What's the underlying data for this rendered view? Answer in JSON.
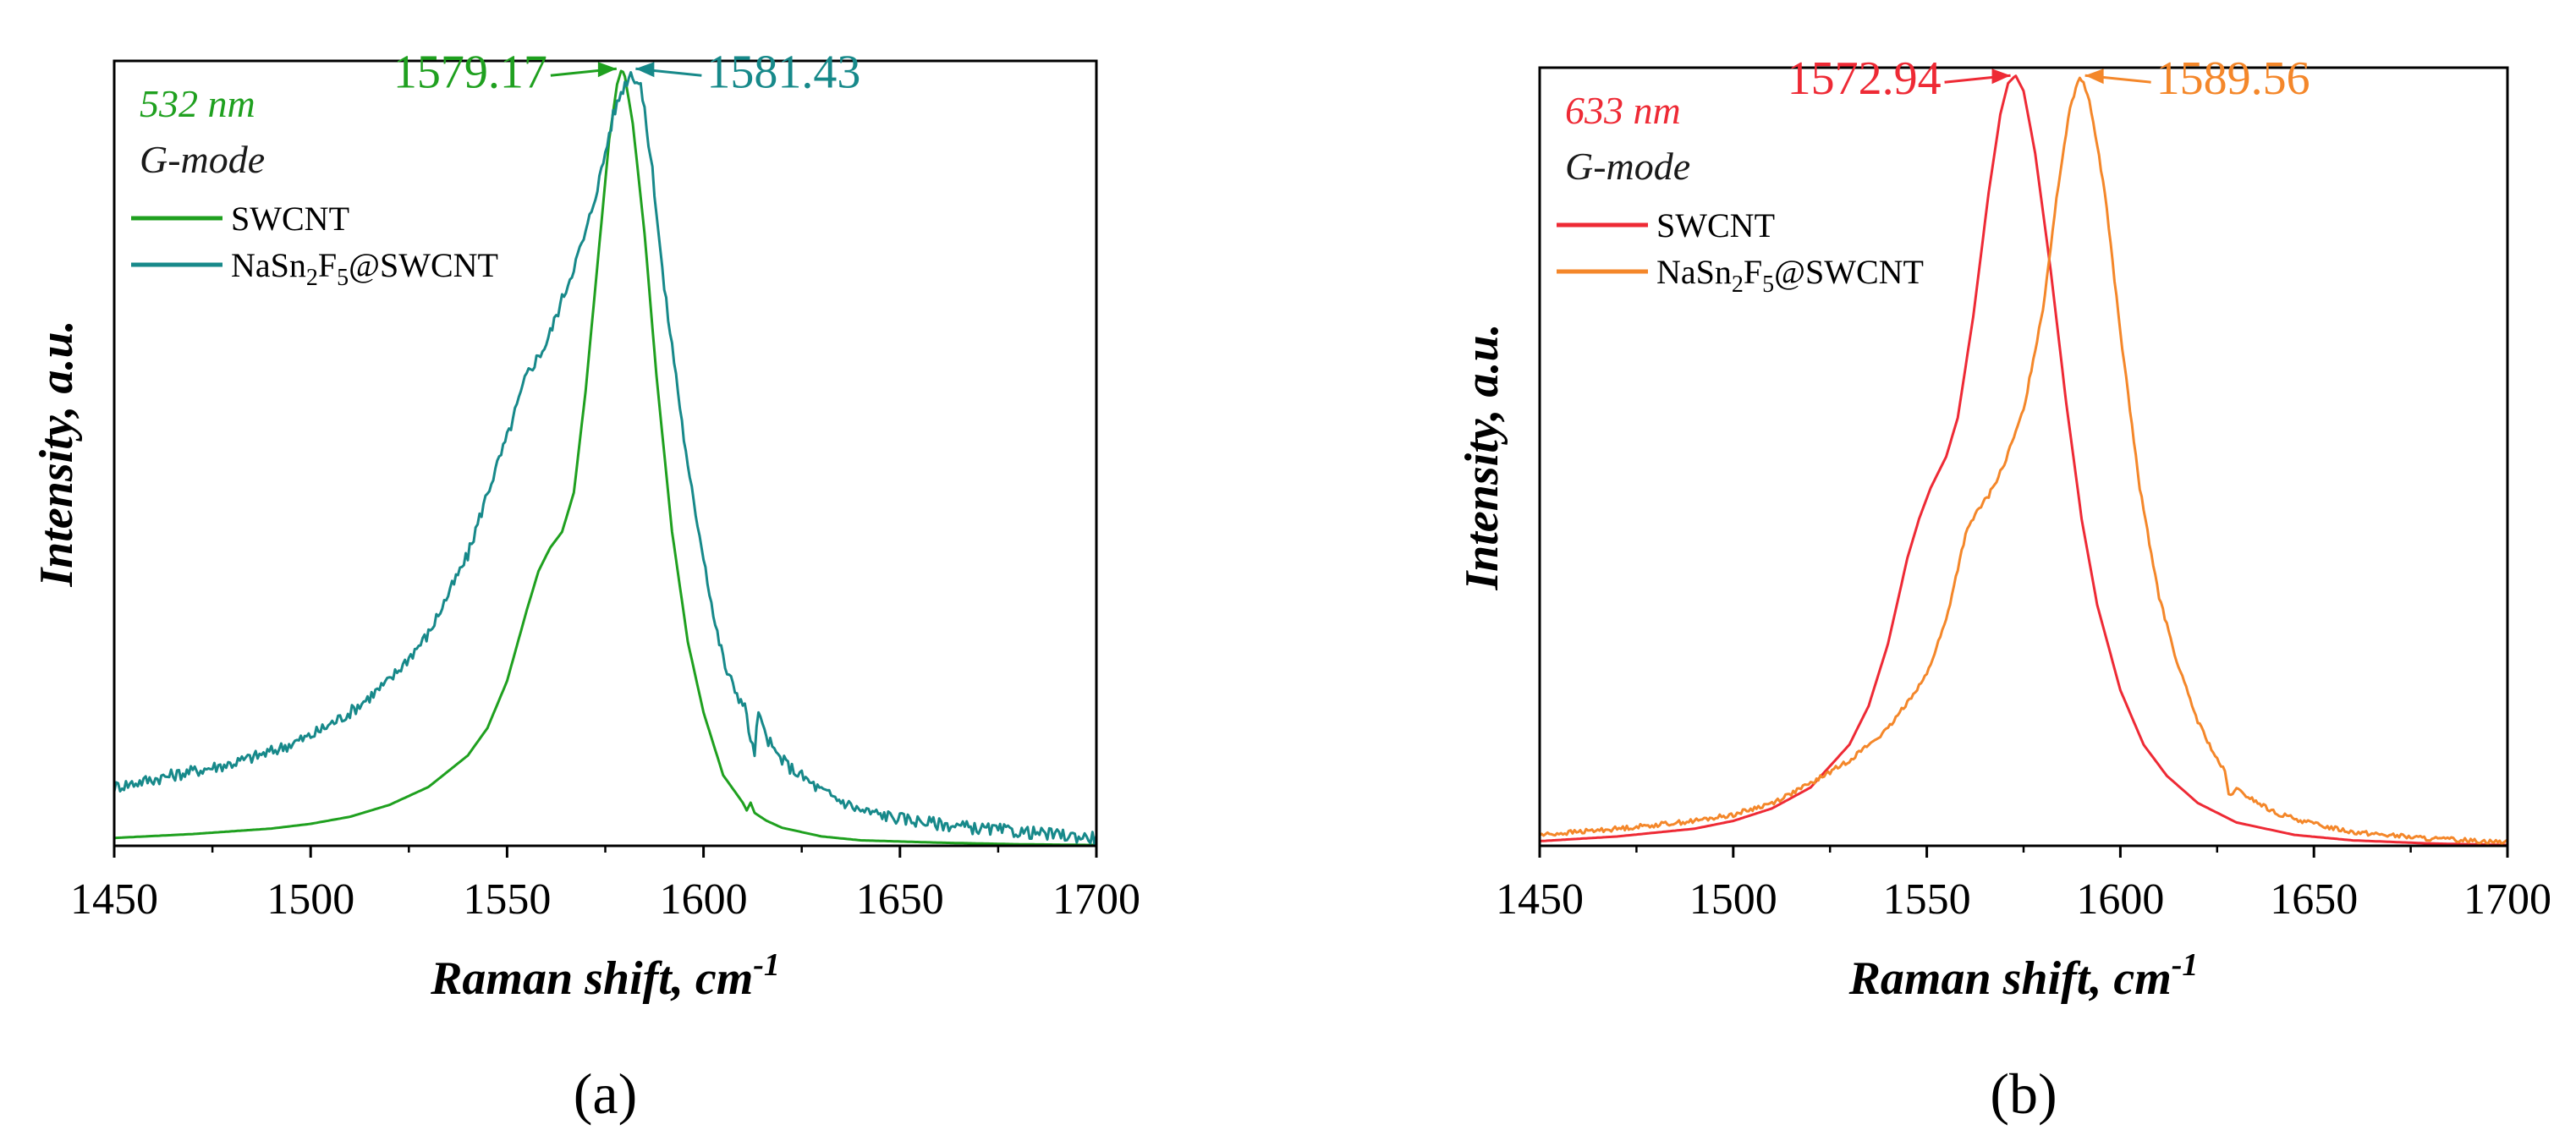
{
  "chart_data": [
    {
      "type": "line",
      "panel_label": "(a)",
      "xlabel": "Raman shift, cm",
      "xlabel_sup": "-1",
      "ylabel": "Intensity, a.u.",
      "xlim": [
        1450,
        1700
      ],
      "ylim": [
        0,
        1.0
      ],
      "xticks": [
        1450,
        1500,
        1550,
        1600,
        1650,
        1700
      ],
      "xtick_labels": [
        "1450",
        "1500",
        "1550",
        "1600",
        "1650",
        "1700"
      ],
      "annotations": {
        "laser": "532 nm",
        "mode": "G-mode",
        "laser_color": "#1fa01f"
      },
      "legend": {
        "position": "top-left",
        "entries": [
          {
            "name": "SWCNT",
            "color": "#1fa01f"
          },
          {
            "name_parts": [
              "NaSn",
              "2",
              "F",
              "5",
              "@SWCNT"
            ],
            "color": "#17898a"
          }
        ]
      },
      "peak_labels": [
        {
          "text": "1579.17",
          "x": 1579.17,
          "y": 0.99,
          "color": "#1fa01f",
          "side": "left"
        },
        {
          "text": "1581.43",
          "x": 1581.43,
          "y": 0.99,
          "color": "#17898a",
          "side": "right"
        }
      ],
      "series": [
        {
          "name": "SWCNT",
          "color": "#1fa01f",
          "x": [
            1450,
            1470,
            1490,
            1500,
            1510,
            1520,
            1530,
            1540,
            1545,
            1550,
            1555,
            1558,
            1561,
            1564,
            1567,
            1570,
            1573,
            1576,
            1578,
            1579.17,
            1580,
            1582,
            1585,
            1588,
            1592,
            1596,
            1600,
            1605,
            1610,
            1611,
            1612,
            1613,
            1616,
            1620,
            1630,
            1640,
            1660,
            1680,
            1700
          ],
          "y": [
            0.01,
            0.015,
            0.022,
            0.028,
            0.037,
            0.052,
            0.075,
            0.115,
            0.15,
            0.21,
            0.3,
            0.35,
            0.38,
            0.4,
            0.45,
            0.58,
            0.74,
            0.9,
            0.97,
            0.99,
            0.98,
            0.92,
            0.78,
            0.6,
            0.4,
            0.26,
            0.17,
            0.09,
            0.055,
            0.045,
            0.055,
            0.042,
            0.032,
            0.023,
            0.012,
            0.007,
            0.004,
            0.002,
            0.001
          ]
        },
        {
          "name": "NaSn2F5@SWCNT",
          "color": "#17898a",
          "noise": 0.008,
          "x": [
            1450,
            1460,
            1470,
            1480,
            1490,
            1500,
            1510,
            1520,
            1530,
            1540,
            1545,
            1550,
            1555,
            1560,
            1565,
            1570,
            1574,
            1577,
            1579,
            1581.43,
            1584,
            1587,
            1590,
            1593,
            1596,
            1600,
            1603,
            1606,
            1609,
            1611,
            1612,
            1613,
            1614,
            1615,
            1618,
            1622,
            1630,
            1640,
            1650,
            1660,
            1670,
            1680,
            1690,
            1700
          ],
          "y": [
            0.075,
            0.085,
            0.095,
            0.105,
            0.12,
            0.14,
            0.17,
            0.21,
            0.27,
            0.37,
            0.45,
            0.52,
            0.6,
            0.64,
            0.71,
            0.78,
            0.86,
            0.93,
            0.96,
            0.985,
            0.97,
            0.86,
            0.71,
            0.6,
            0.48,
            0.37,
            0.28,
            0.22,
            0.19,
            0.17,
            0.13,
            0.12,
            0.17,
            0.15,
            0.12,
            0.1,
            0.07,
            0.045,
            0.035,
            0.028,
            0.022,
            0.018,
            0.014,
            0.01
          ]
        }
      ]
    },
    {
      "type": "line",
      "panel_label": "(b)",
      "xlabel": "Raman shift, cm",
      "xlabel_sup": "-1",
      "ylabel": "Intensity, a.u.",
      "xlim": [
        1450,
        1700
      ],
      "ylim": [
        0,
        1.0
      ],
      "xticks": [
        1450,
        1500,
        1550,
        1600,
        1650,
        1700
      ],
      "xtick_labels": [
        "1450",
        "1500",
        "1550",
        "1600",
        "1650",
        "1700"
      ],
      "annotations": {
        "laser": "633 nm",
        "mode": "G-mode",
        "laser_color": "#ee2a35"
      },
      "legend": {
        "position": "top-left",
        "entries": [
          {
            "name": "SWCNT",
            "color": "#ee2a35"
          },
          {
            "name_parts": [
              "NaSn",
              "2",
              "F",
              "5",
              "@SWCNT"
            ],
            "color": "#f4872a"
          }
        ]
      },
      "peak_labels": [
        {
          "text": "1572.94",
          "x": 1572.94,
          "y": 0.99,
          "color": "#ee2a35",
          "side": "left"
        },
        {
          "text": "1589.56",
          "x": 1589.56,
          "y": 0.99,
          "color": "#f4872a",
          "side": "right"
        }
      ],
      "series": [
        {
          "name": "SWCNT",
          "color": "#ee2a35",
          "x": [
            1450,
            1470,
            1490,
            1500,
            1510,
            1520,
            1530,
            1535,
            1540,
            1545,
            1548,
            1551,
            1555,
            1558,
            1562,
            1566,
            1569,
            1571,
            1572.94,
            1575,
            1578,
            1582,
            1586,
            1590,
            1594,
            1600,
            1606,
            1612,
            1620,
            1630,
            1645,
            1660,
            1680,
            1700
          ],
          "y": [
            0.006,
            0.012,
            0.022,
            0.032,
            0.048,
            0.075,
            0.13,
            0.18,
            0.26,
            0.37,
            0.42,
            0.46,
            0.5,
            0.55,
            0.68,
            0.84,
            0.94,
            0.98,
            0.99,
            0.97,
            0.89,
            0.74,
            0.57,
            0.42,
            0.31,
            0.2,
            0.13,
            0.09,
            0.055,
            0.03,
            0.014,
            0.007,
            0.003,
            0.001
          ]
        },
        {
          "name": "NaSn2F5@SWCNT",
          "color": "#f4872a",
          "noise": 0.003,
          "x": [
            1450,
            1470,
            1490,
            1500,
            1510,
            1520,
            1530,
            1540,
            1550,
            1555,
            1560,
            1563,
            1566,
            1570,
            1575,
            1580,
            1584,
            1587,
            1589.56,
            1592,
            1596,
            1600,
            1605,
            1610,
            1615,
            1620,
            1625,
            1627,
            1628,
            1630,
            1640,
            1650,
            1660,
            1680,
            1700
          ],
          "y": [
            0.014,
            0.022,
            0.032,
            0.04,
            0.055,
            0.08,
            0.11,
            0.15,
            0.22,
            0.29,
            0.4,
            0.43,
            0.45,
            0.49,
            0.56,
            0.69,
            0.85,
            0.95,
            0.99,
            0.96,
            0.84,
            0.66,
            0.46,
            0.32,
            0.23,
            0.16,
            0.11,
            0.095,
            0.065,
            0.072,
            0.042,
            0.028,
            0.018,
            0.009,
            0.005
          ]
        }
      ]
    }
  ]
}
